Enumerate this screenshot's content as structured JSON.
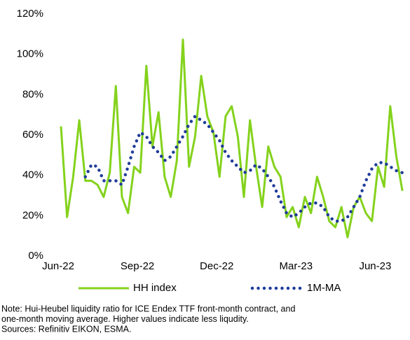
{
  "chart_data": {
    "type": "line",
    "categories": [
      "Jun-22",
      null,
      null,
      null,
      null,
      null,
      null,
      null,
      null,
      null,
      null,
      null,
      null,
      "Sep-22",
      null,
      null,
      null,
      null,
      null,
      null,
      null,
      null,
      null,
      null,
      null,
      null,
      "Dec-22",
      null,
      null,
      null,
      null,
      null,
      null,
      null,
      null,
      null,
      null,
      null,
      null,
      "Mar-23",
      null,
      null,
      null,
      null,
      null,
      null,
      null,
      null,
      null,
      null,
      null,
      null,
      "Jun-23",
      null,
      null,
      null,
      null
    ],
    "series": [
      {
        "name": "HH index",
        "color": "#84d21c",
        "style": "solid",
        "values": [
          65,
          20,
          40,
          68,
          38,
          38,
          36,
          30,
          42,
          85,
          30,
          22,
          45,
          42,
          95,
          55,
          72,
          40,
          30,
          48,
          108,
          45,
          60,
          90,
          70,
          62,
          40,
          70,
          75,
          60,
          30,
          68,
          45,
          25,
          55,
          45,
          40,
          20,
          25,
          15,
          30,
          22,
          40,
          30,
          18,
          15,
          25,
          10,
          25,
          30,
          22,
          18,
          45,
          35,
          75,
          50,
          33
        ]
      },
      {
        "name": "1M-MA",
        "color": "#1f3c99",
        "style": "dotted",
        "values": [
          null,
          null,
          null,
          null,
          40,
          46,
          45,
          38,
          38,
          38,
          36,
          45,
          55,
          62,
          60,
          55,
          52,
          48,
          50,
          55,
          60,
          66,
          70,
          68,
          66,
          62,
          58,
          52,
          48,
          45,
          42,
          43,
          46,
          44,
          40,
          35,
          28,
          22,
          20,
          22,
          25,
          27,
          27,
          25,
          20,
          18,
          18,
          20,
          25,
          30,
          38,
          44,
          47,
          47,
          45,
          43,
          42
        ]
      }
    ],
    "ylim": [
      0,
      120
    ],
    "yticks": [
      {
        "value": 0,
        "label": "0%"
      },
      {
        "value": 20,
        "label": "20%"
      },
      {
        "value": 40,
        "label": "40%"
      },
      {
        "value": 60,
        "label": "60%"
      },
      {
        "value": 80,
        "label": "80%"
      },
      {
        "value": 100,
        "label": "100%"
      },
      {
        "value": 120,
        "label": "120%"
      }
    ],
    "grid": false,
    "legend": "bottom",
    "notes": [
      "Note: Hui-Heubel liquidity ratio for ICE Endex TTF front-month contract, and",
      "one-month moving average. Higher values indicate less liqudity.",
      "Sources: Refinitiv EIKON, ESMA."
    ]
  }
}
